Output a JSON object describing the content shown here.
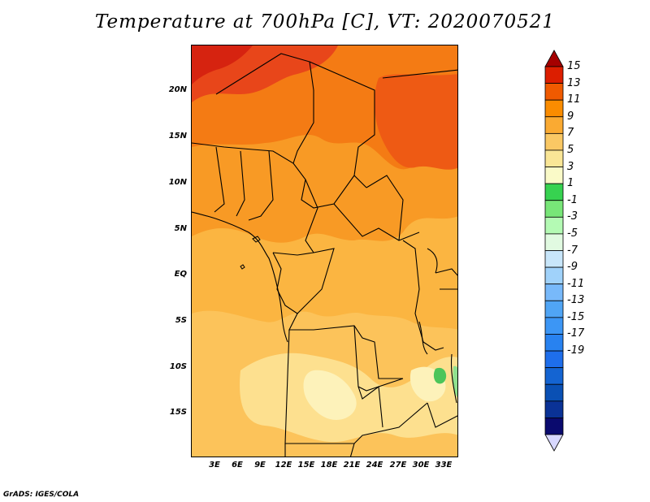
{
  "title": "Temperature at 700hPa [C], VT: 2020070521",
  "credit": "GrADS: IGES/COLA",
  "map": {
    "projection": "lat-lon",
    "lon_range": [
      0,
      35
    ],
    "lat_range": [
      -20,
      24
    ],
    "lat_ticks": [
      "20N",
      "15N",
      "10N",
      "5N",
      "EQ",
      "5S",
      "10S",
      "15S"
    ],
    "lon_ticks": [
      "3E",
      "6E",
      "9E",
      "12E",
      "15E",
      "18E",
      "21E",
      "24E",
      "27E",
      "30E",
      "33E"
    ],
    "field": "temperature_700hPa",
    "warmest_region": "north-west Sahara",
    "coolest_region": "east African highlands"
  },
  "colorbar": {
    "labels": [
      "15",
      "13",
      "11",
      "9",
      "7",
      "5",
      "3",
      "1",
      "-1",
      "-3",
      "-5",
      "-7",
      "-9",
      "-11",
      "-13",
      "-15",
      "-17",
      "-19"
    ],
    "colors": [
      "#a50000",
      "#dc1e00",
      "#f05a00",
      "#fa8c00",
      "#faaa32",
      "#fac864",
      "#fae696",
      "#fafac8",
      "#37d250",
      "#78e678",
      "#b4fab4",
      "#e1fae1",
      "#c8e6fa",
      "#a0d2fa",
      "#78b9fa",
      "#50a5f5",
      "#3c96f5",
      "#2882f0",
      "#1e6eeb",
      "#1464d2",
      "#0a50b4",
      "#0a3296",
      "#0a0a6e",
      "#d8d8ff"
    ]
  }
}
